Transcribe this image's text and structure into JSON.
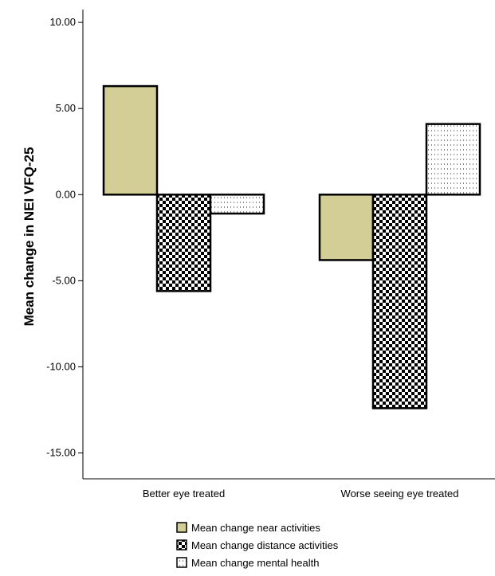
{
  "chart_data": {
    "type": "bar",
    "ylabel": "Mean change in NEI VFQ-25",
    "xlabel": "",
    "categories": [
      "Better eye treated",
      "Worse seeing eye treated"
    ],
    "ylim": [
      -16.5,
      11.3
    ],
    "yticks": [
      10,
      5,
      0,
      -5,
      -10,
      -15
    ],
    "ytick_labels": [
      "10.00",
      "5.00",
      "0.00",
      "-5.00",
      "-10.00",
      "-15.00"
    ],
    "series": [
      {
        "name": "Mean change near activities",
        "values": [
          6.3,
          -3.8
        ],
        "color": "#d3cd96",
        "pattern": "solid"
      },
      {
        "name": "Mean change distance activities",
        "values": [
          -5.6,
          -12.4
        ],
        "color": "#000000",
        "pattern": "checker"
      },
      {
        "name": "Mean change mental health",
        "values": [
          -1.1,
          4.1
        ],
        "color": "#ffffff",
        "pattern": "dots"
      }
    ],
    "legend_position": "bottom",
    "grid": false
  }
}
